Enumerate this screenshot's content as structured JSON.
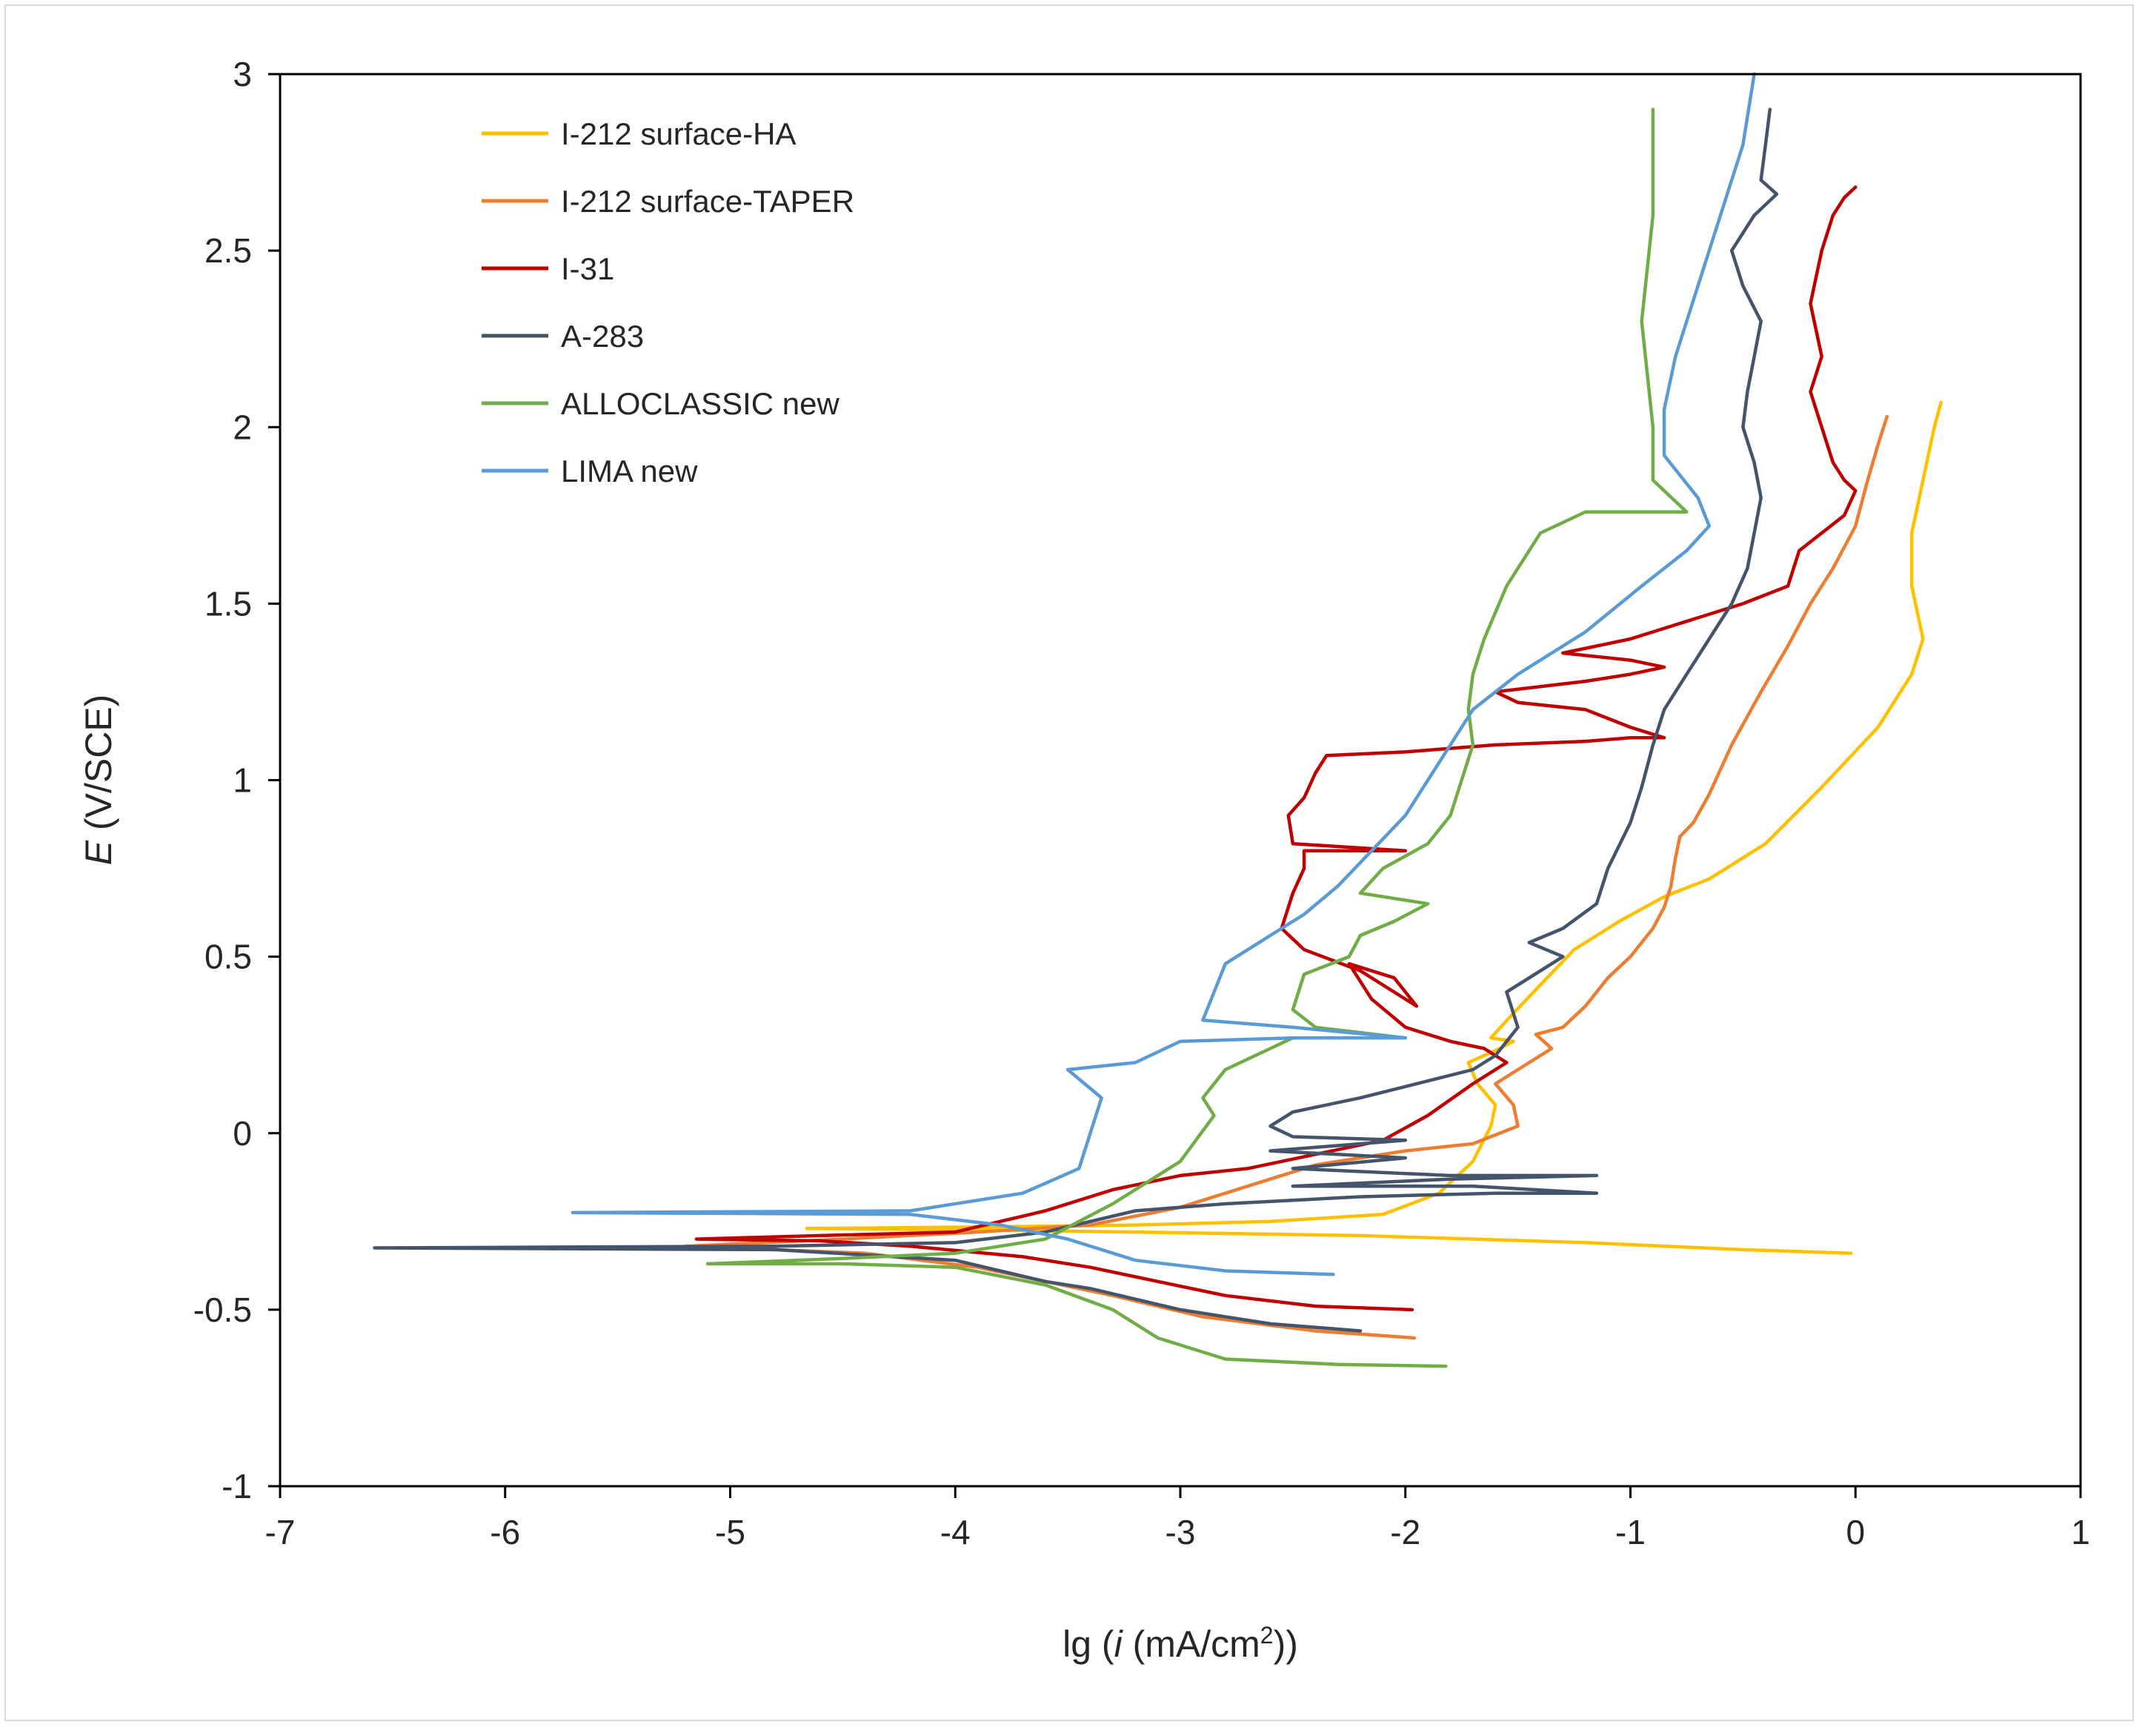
{
  "chart_data": {
    "type": "line",
    "xlabel": {
      "prefix": "lg (",
      "italic": "i",
      "mid": " (mA/cm",
      "sup": "2",
      "suffix": "))"
    },
    "ylabel": {
      "italic": "E",
      "rest": " (V/SCE)"
    },
    "xlim": [
      -7,
      1
    ],
    "ylim": [
      -1,
      3
    ],
    "xticks": [
      -7,
      -6,
      -5,
      -4,
      -3,
      -2,
      -1,
      0,
      1
    ],
    "yticks": [
      -1,
      -0.5,
      0,
      0.5,
      1,
      1.5,
      2,
      2.5,
      3
    ],
    "xtick_labels": [
      "-7",
      "-6",
      "-5",
      "-4",
      "-3",
      "-2",
      "-1",
      "0",
      "1"
    ],
    "ytick_labels": [
      "-1",
      "-0.5",
      "0",
      "0.5",
      "1",
      "1.5",
      "2",
      "2.5",
      "3"
    ],
    "grid": false,
    "legend_position": "top-left",
    "series": [
      {
        "name": "I-212 surface-HA",
        "color": "#FFC000",
        "points": [
          [
            -0.02,
            -0.34
          ],
          [
            -0.5,
            -0.33
          ],
          [
            -1.2,
            -0.31
          ],
          [
            -2.2,
            -0.29
          ],
          [
            -3.2,
            -0.28
          ],
          [
            -3.8,
            -0.275
          ],
          [
            -4.66,
            -0.27
          ],
          [
            -3.8,
            -0.265
          ],
          [
            -3.2,
            -0.26
          ],
          [
            -2.6,
            -0.25
          ],
          [
            -2.1,
            -0.23
          ],
          [
            -1.85,
            -0.17
          ],
          [
            -1.7,
            -0.08
          ],
          [
            -1.62,
            0.02
          ],
          [
            -1.6,
            0.08
          ],
          [
            -1.68,
            0.14
          ],
          [
            -1.72,
            0.2
          ],
          [
            -1.58,
            0.24
          ],
          [
            -1.52,
            0.26
          ],
          [
            -1.62,
            0.27
          ],
          [
            -1.52,
            0.34
          ],
          [
            -1.4,
            0.42
          ],
          [
            -1.25,
            0.52
          ],
          [
            -1.05,
            0.6
          ],
          [
            -0.85,
            0.67
          ],
          [
            -0.65,
            0.72
          ],
          [
            -0.4,
            0.82
          ],
          [
            -0.15,
            0.98
          ],
          [
            0.1,
            1.15
          ],
          [
            0.25,
            1.3
          ],
          [
            0.3,
            1.4
          ],
          [
            0.25,
            1.55
          ],
          [
            0.25,
            1.7
          ],
          [
            0.3,
            1.85
          ],
          [
            0.35,
            2.0
          ],
          [
            0.38,
            2.07
          ]
        ]
      },
      {
        "name": "I-212 surface-TAPER",
        "color": "#ED7D31",
        "points": [
          [
            -1.96,
            -0.58
          ],
          [
            -2.4,
            -0.56
          ],
          [
            -2.9,
            -0.52
          ],
          [
            -3.3,
            -0.46
          ],
          [
            -3.6,
            -0.42
          ],
          [
            -3.9,
            -0.38
          ],
          [
            -4.4,
            -0.34
          ],
          [
            -5.2,
            -0.32
          ],
          [
            -4.5,
            -0.3
          ],
          [
            -3.9,
            -0.28
          ],
          [
            -3.4,
            -0.26
          ],
          [
            -3.0,
            -0.21
          ],
          [
            -2.7,
            -0.15
          ],
          [
            -2.4,
            -0.09
          ],
          [
            -2.0,
            -0.05
          ],
          [
            -1.7,
            -0.03
          ],
          [
            -1.5,
            0.02
          ],
          [
            -1.52,
            0.08
          ],
          [
            -1.6,
            0.14
          ],
          [
            -1.45,
            0.2
          ],
          [
            -1.35,
            0.24
          ],
          [
            -1.42,
            0.28
          ],
          [
            -1.3,
            0.3
          ],
          [
            -1.2,
            0.36
          ],
          [
            -1.1,
            0.44
          ],
          [
            -1.0,
            0.5
          ],
          [
            -0.9,
            0.58
          ],
          [
            -0.85,
            0.64
          ],
          [
            -0.82,
            0.7
          ],
          [
            -0.8,
            0.78
          ],
          [
            -0.78,
            0.84
          ],
          [
            -0.72,
            0.88
          ],
          [
            -0.65,
            0.96
          ],
          [
            -0.55,
            1.1
          ],
          [
            -0.42,
            1.25
          ],
          [
            -0.3,
            1.38
          ],
          [
            -0.2,
            1.5
          ],
          [
            -0.1,
            1.6
          ],
          [
            0.0,
            1.72
          ],
          [
            0.05,
            1.84
          ],
          [
            0.1,
            1.95
          ],
          [
            0.14,
            2.03
          ]
        ]
      },
      {
        "name": "I-31",
        "color": "#C00000",
        "points": [
          [
            -1.97,
            -0.5
          ],
          [
            -2.4,
            -0.49
          ],
          [
            -2.8,
            -0.46
          ],
          [
            -3.1,
            -0.42
          ],
          [
            -3.4,
            -0.38
          ],
          [
            -3.7,
            -0.35
          ],
          [
            -4.2,
            -0.32
          ],
          [
            -4.6,
            -0.305
          ],
          [
            -5.15,
            -0.3
          ],
          [
            -4.6,
            -0.29
          ],
          [
            -4.0,
            -0.28
          ],
          [
            -3.6,
            -0.22
          ],
          [
            -3.3,
            -0.16
          ],
          [
            -3.0,
            -0.12
          ],
          [
            -2.7,
            -0.1
          ],
          [
            -2.4,
            -0.06
          ],
          [
            -2.1,
            -0.02
          ],
          [
            -1.9,
            0.05
          ],
          [
            -1.7,
            0.14
          ],
          [
            -1.55,
            0.2
          ],
          [
            -1.65,
            0.24
          ],
          [
            -1.8,
            0.26
          ],
          [
            -2.0,
            0.3
          ],
          [
            -2.15,
            0.38
          ],
          [
            -2.25,
            0.48
          ],
          [
            -2.05,
            0.44
          ],
          [
            -1.95,
            0.36
          ],
          [
            -2.2,
            0.46
          ],
          [
            -2.45,
            0.52
          ],
          [
            -2.55,
            0.58
          ],
          [
            -2.5,
            0.68
          ],
          [
            -2.45,
            0.75
          ],
          [
            -2.45,
            0.8
          ],
          [
            -2.0,
            0.8
          ],
          [
            -2.5,
            0.82
          ],
          [
            -2.52,
            0.9
          ],
          [
            -2.45,
            0.95
          ],
          [
            -2.4,
            1.02
          ],
          [
            -2.35,
            1.07
          ],
          [
            -2.0,
            1.08
          ],
          [
            -1.6,
            1.1
          ],
          [
            -1.2,
            1.11
          ],
          [
            -1.0,
            1.12
          ],
          [
            -0.85,
            1.12
          ],
          [
            -1.0,
            1.15
          ],
          [
            -1.2,
            1.2
          ],
          [
            -1.5,
            1.22
          ],
          [
            -1.6,
            1.25
          ],
          [
            -1.2,
            1.28
          ],
          [
            -1.0,
            1.3
          ],
          [
            -0.85,
            1.32
          ],
          [
            -1.0,
            1.34
          ],
          [
            -1.3,
            1.36
          ],
          [
            -1.0,
            1.4
          ],
          [
            -0.75,
            1.45
          ],
          [
            -0.5,
            1.5
          ],
          [
            -0.3,
            1.55
          ],
          [
            -0.25,
            1.65
          ],
          [
            -0.05,
            1.75
          ],
          [
            0.0,
            1.82
          ],
          [
            -0.05,
            1.85
          ],
          [
            -0.1,
            1.9
          ],
          [
            -0.15,
            2.0
          ],
          [
            -0.2,
            2.1
          ],
          [
            -0.15,
            2.2
          ],
          [
            -0.2,
            2.35
          ],
          [
            -0.15,
            2.5
          ],
          [
            -0.1,
            2.6
          ],
          [
            -0.05,
            2.65
          ],
          [
            0.0,
            2.68
          ]
        ]
      },
      {
        "name": "A-283",
        "color": "#44546A",
        "points": [
          [
            -2.2,
            -0.56
          ],
          [
            -2.6,
            -0.54
          ],
          [
            -3.0,
            -0.5
          ],
          [
            -3.4,
            -0.44
          ],
          [
            -3.6,
            -0.42
          ],
          [
            -4.0,
            -0.36
          ],
          [
            -4.8,
            -0.33
          ],
          [
            -6.58,
            -0.325
          ],
          [
            -4.8,
            -0.32
          ],
          [
            -4.0,
            -0.31
          ],
          [
            -3.6,
            -0.28
          ],
          [
            -3.2,
            -0.22
          ],
          [
            -2.8,
            -0.2
          ],
          [
            -2.2,
            -0.18
          ],
          [
            -1.6,
            -0.17
          ],
          [
            -1.15,
            -0.17
          ],
          [
            -1.7,
            -0.15
          ],
          [
            -2.5,
            -0.15
          ],
          [
            -1.8,
            -0.13
          ],
          [
            -1.15,
            -0.12
          ],
          [
            -1.8,
            -0.12
          ],
          [
            -2.5,
            -0.1
          ],
          [
            -2.0,
            -0.07
          ],
          [
            -2.6,
            -0.05
          ],
          [
            -2.0,
            -0.02
          ],
          [
            -2.5,
            -0.01
          ],
          [
            -2.6,
            0.02
          ],
          [
            -2.5,
            0.06
          ],
          [
            -2.2,
            0.1
          ],
          [
            -1.95,
            0.14
          ],
          [
            -1.7,
            0.18
          ],
          [
            -1.6,
            0.22
          ],
          [
            -1.5,
            0.3
          ],
          [
            -1.55,
            0.4
          ],
          [
            -1.4,
            0.46
          ],
          [
            -1.3,
            0.5
          ],
          [
            -1.45,
            0.54
          ],
          [
            -1.3,
            0.58
          ],
          [
            -1.15,
            0.65
          ],
          [
            -1.1,
            0.75
          ],
          [
            -1.0,
            0.88
          ],
          [
            -0.95,
            0.98
          ],
          [
            -0.9,
            1.1
          ],
          [
            -0.85,
            1.2
          ],
          [
            -0.75,
            1.3
          ],
          [
            -0.65,
            1.4
          ],
          [
            -0.55,
            1.5
          ],
          [
            -0.48,
            1.6
          ],
          [
            -0.45,
            1.7
          ],
          [
            -0.42,
            1.8
          ],
          [
            -0.45,
            1.9
          ],
          [
            -0.5,
            2.0
          ],
          [
            -0.48,
            2.1
          ],
          [
            -0.45,
            2.2
          ],
          [
            -0.42,
            2.3
          ],
          [
            -0.5,
            2.4
          ],
          [
            -0.55,
            2.5
          ],
          [
            -0.45,
            2.6
          ],
          [
            -0.35,
            2.66
          ],
          [
            -0.42,
            2.7
          ],
          [
            -0.4,
            2.8
          ],
          [
            -0.38,
            2.9
          ]
        ]
      },
      {
        "name": "ALLOCLASSIC new",
        "color": "#70AD47",
        "points": [
          [
            -1.82,
            -0.66
          ],
          [
            -2.3,
            -0.655
          ],
          [
            -2.8,
            -0.64
          ],
          [
            -3.1,
            -0.58
          ],
          [
            -3.3,
            -0.5
          ],
          [
            -3.6,
            -0.43
          ],
          [
            -4.0,
            -0.38
          ],
          [
            -4.5,
            -0.37
          ],
          [
            -5.1,
            -0.37
          ],
          [
            -4.5,
            -0.355
          ],
          [
            -4.0,
            -0.34
          ],
          [
            -3.6,
            -0.3
          ],
          [
            -3.3,
            -0.2
          ],
          [
            -3.0,
            -0.08
          ],
          [
            -2.85,
            0.05
          ],
          [
            -2.9,
            0.1
          ],
          [
            -2.8,
            0.18
          ],
          [
            -2.6,
            0.24
          ],
          [
            -2.5,
            0.27
          ],
          [
            -2.0,
            0.27
          ],
          [
            -2.4,
            0.3
          ],
          [
            -2.5,
            0.35
          ],
          [
            -2.45,
            0.45
          ],
          [
            -2.25,
            0.5
          ],
          [
            -2.2,
            0.56
          ],
          [
            -2.05,
            0.6
          ],
          [
            -1.9,
            0.65
          ],
          [
            -2.2,
            0.68
          ],
          [
            -2.1,
            0.75
          ],
          [
            -1.9,
            0.82
          ],
          [
            -1.8,
            0.9
          ],
          [
            -1.75,
            1.0
          ],
          [
            -1.7,
            1.1
          ],
          [
            -1.72,
            1.2
          ],
          [
            -1.7,
            1.3
          ],
          [
            -1.65,
            1.4
          ],
          [
            -1.55,
            1.55
          ],
          [
            -1.4,
            1.7
          ],
          [
            -1.2,
            1.76
          ],
          [
            -0.75,
            1.76
          ],
          [
            -0.9,
            1.85
          ],
          [
            -0.9,
            2.0
          ],
          [
            -0.95,
            2.3
          ],
          [
            -0.9,
            2.6
          ],
          [
            -0.9,
            2.9
          ]
        ]
      },
      {
        "name": "LIMA new",
        "color": "#5B9BD5",
        "points": [
          [
            -2.32,
            -0.4
          ],
          [
            -2.8,
            -0.39
          ],
          [
            -3.2,
            -0.36
          ],
          [
            -3.5,
            -0.3
          ],
          [
            -3.8,
            -0.26
          ],
          [
            -4.2,
            -0.23
          ],
          [
            -5.7,
            -0.225
          ],
          [
            -4.2,
            -0.22
          ],
          [
            -3.7,
            -0.17
          ],
          [
            -3.45,
            -0.1
          ],
          [
            -3.4,
            0.0
          ],
          [
            -3.35,
            0.1
          ],
          [
            -3.5,
            0.18
          ],
          [
            -3.2,
            0.2
          ],
          [
            -3.0,
            0.26
          ],
          [
            -2.5,
            0.27
          ],
          [
            -2.0,
            0.27
          ],
          [
            -2.5,
            0.3
          ],
          [
            -2.9,
            0.32
          ],
          [
            -2.85,
            0.4
          ],
          [
            -2.8,
            0.48
          ],
          [
            -2.6,
            0.56
          ],
          [
            -2.45,
            0.62
          ],
          [
            -2.3,
            0.7
          ],
          [
            -2.15,
            0.8
          ],
          [
            -2.0,
            0.9
          ],
          [
            -1.9,
            1.0
          ],
          [
            -1.8,
            1.1
          ],
          [
            -1.7,
            1.2
          ],
          [
            -1.5,
            1.3
          ],
          [
            -1.2,
            1.42
          ],
          [
            -0.95,
            1.55
          ],
          [
            -0.75,
            1.65
          ],
          [
            -0.65,
            1.72
          ],
          [
            -0.7,
            1.8
          ],
          [
            -0.85,
            1.92
          ],
          [
            -0.85,
            2.05
          ],
          [
            -0.8,
            2.2
          ],
          [
            -0.7,
            2.4
          ],
          [
            -0.6,
            2.6
          ],
          [
            -0.5,
            2.8
          ],
          [
            -0.45,
            3.0
          ]
        ]
      }
    ]
  }
}
